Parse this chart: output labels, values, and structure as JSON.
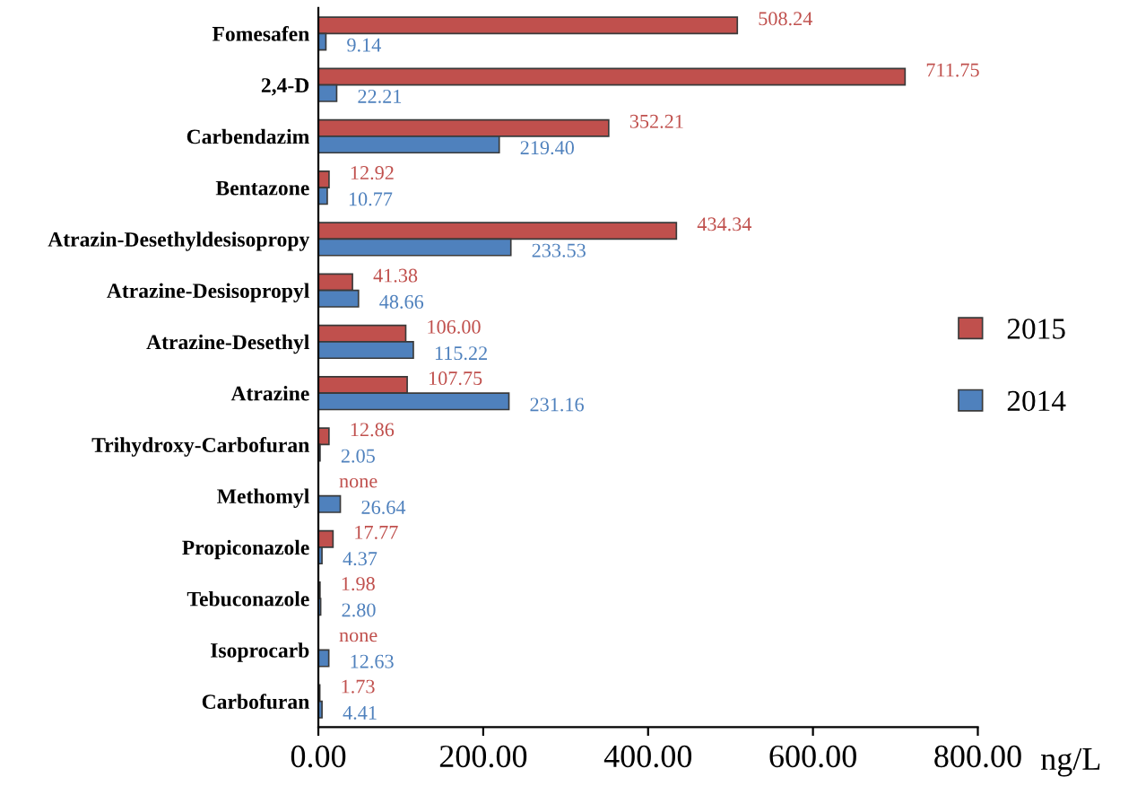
{
  "chart_data": {
    "type": "bar",
    "orientation": "horizontal",
    "xlabel": "ng/L",
    "categories": [
      "Fomesafen",
      "2,4-D",
      "Carbendazim",
      "Bentazone",
      "Atrazin-Desethyldesisopropy",
      "Atrazine-Desisopropyl",
      "Atrazine-Desethyl",
      "Atrazine",
      "Trihydroxy-Carbofuran",
      "Methomyl",
      "Propiconazole",
      "Tebuconazole",
      "Isoprocarb",
      "Carbofuran"
    ],
    "series": [
      {
        "name": "2015",
        "color": "#c0504d",
        "values": [
          508.24,
          711.75,
          352.21,
          12.92,
          434.34,
          41.38,
          106.0,
          107.75,
          12.86,
          null,
          17.77,
          1.98,
          null,
          1.73
        ],
        "value_labels": [
          "508.24",
          "711.75",
          "352.21",
          "12.92",
          "434.34",
          "41.38",
          "106.00",
          "107.75",
          "12.86",
          "none",
          "17.77",
          "1.98",
          "none",
          "1.73"
        ]
      },
      {
        "name": "2014",
        "color": "#4f81bd",
        "values": [
          9.14,
          22.21,
          219.4,
          10.77,
          233.53,
          48.66,
          115.22,
          231.16,
          2.05,
          26.64,
          4.37,
          2.8,
          12.63,
          4.41
        ],
        "value_labels": [
          "9.14",
          "22.21",
          "219.40",
          "10.77",
          "233.53",
          "48.66",
          "115.22",
          "231.16",
          "2.05",
          "26.64",
          "4.37",
          "2.80",
          "12.63",
          "4.41"
        ]
      }
    ],
    "xlim": [
      0,
      800
    ],
    "xticks": [
      {
        "value": 0,
        "label": "0.00"
      },
      {
        "value": 200,
        "label": "200.00"
      },
      {
        "value": 400,
        "label": "400.00"
      },
      {
        "value": 600,
        "label": "600.00"
      },
      {
        "value": 800,
        "label": "800.00"
      }
    ],
    "grid": false,
    "legend": "right"
  }
}
